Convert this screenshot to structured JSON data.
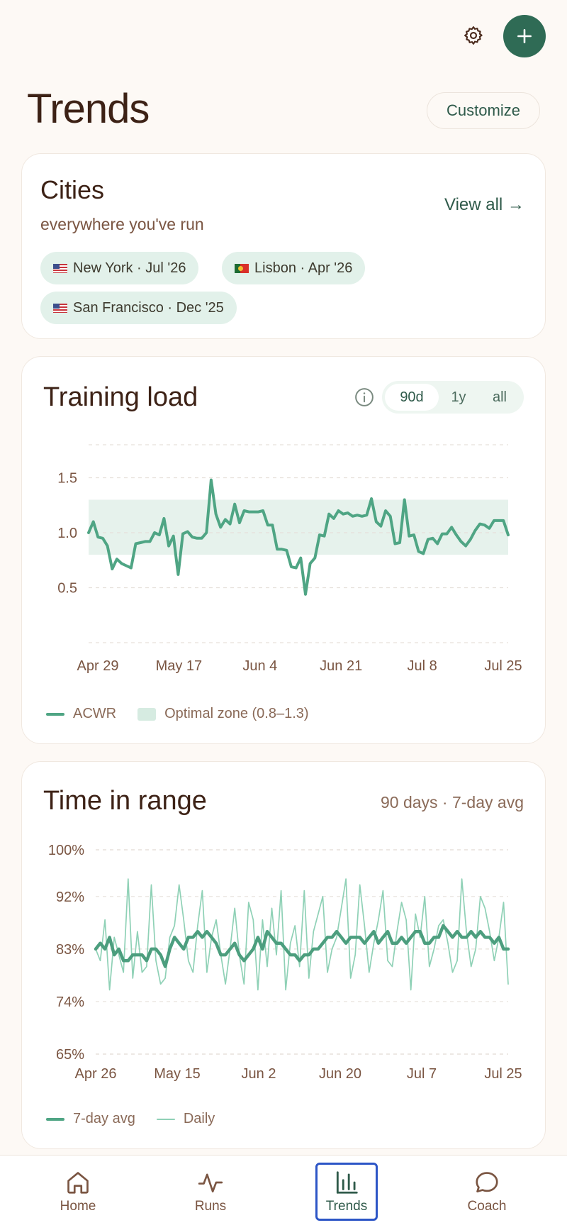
{
  "header": {
    "settings_icon": "gear-icon",
    "add_icon": "plus-icon",
    "title": "Trends",
    "customize_label": "Customize"
  },
  "cities": {
    "title": "Cities",
    "subtitle": "everywhere you've run",
    "view_all_label": "View all →",
    "chips": [
      {
        "flag": "US",
        "label": "New York · Jul '26"
      },
      {
        "flag": "PT",
        "label": "Lisbon · Apr '26"
      },
      {
        "flag": "US",
        "label": "San Francisco · Dec '25"
      }
    ]
  },
  "training_load": {
    "title": "Training load",
    "info_icon": "info-icon",
    "ranges": [
      "90d",
      "1y",
      "all"
    ],
    "selected_range": "90d",
    "legend": {
      "line": "ACWR",
      "zone": "Optimal zone (0.8–1.3)"
    }
  },
  "time_in_range": {
    "title": "Time in range",
    "meta": "90 days · 7-day avg",
    "legend": {
      "avg": "7-day avg",
      "daily": "Daily"
    }
  },
  "nav": {
    "items": [
      {
        "label": "Home",
        "icon": "home-icon"
      },
      {
        "label": "Runs",
        "icon": "pulse-icon"
      },
      {
        "label": "Trends",
        "icon": "bar-chart-icon"
      },
      {
        "label": "Coach",
        "icon": "chat-bubble-icon"
      }
    ],
    "active": "Trends"
  },
  "colors": {
    "accent": "#2f6b55",
    "line": "#4fa584",
    "zone": "#e6f2ec",
    "title": "#3d2216",
    "muted": "#8a6a58",
    "nav_focus": "#2c55c6"
  },
  "chart_data": [
    {
      "type": "line",
      "title": "Training load",
      "x_ticks": [
        "Apr 29",
        "May 17",
        "Jun 4",
        "Jun 21",
        "Jul 8",
        "Jul 25"
      ],
      "y_ticks": [
        "0.5",
        "1.0",
        "1.5"
      ],
      "ylim": [
        0.0,
        1.8
      ],
      "band": {
        "name": "Optimal zone (0.8–1.3)",
        "low": 0.8,
        "high": 1.3
      },
      "grid": true,
      "legend_position": "bottom-left",
      "series": [
        {
          "name": "ACWR",
          "values": [
            1.0,
            1.1,
            0.96,
            0.95,
            0.88,
            0.67,
            0.76,
            0.72,
            0.7,
            0.68,
            0.9,
            0.91,
            0.92,
            0.92,
            1.0,
            0.98,
            1.13,
            0.88,
            0.97,
            0.62,
            0.99,
            1.01,
            0.96,
            0.95,
            0.95,
            1.0,
            1.48,
            1.17,
            1.05,
            1.12,
            1.08,
            1.26,
            1.09,
            1.2,
            1.19,
            1.19,
            1.19,
            1.2,
            1.07,
            1.07,
            0.85,
            0.85,
            0.84,
            0.69,
            0.68,
            0.77,
            0.44,
            0.72,
            0.77,
            0.98,
            0.97,
            1.17,
            1.13,
            1.2,
            1.17,
            1.18,
            1.15,
            1.16,
            1.15,
            1.16,
            1.31,
            1.1,
            1.06,
            1.2,
            1.15,
            0.9,
            0.91,
            1.3,
            0.97,
            0.98,
            0.83,
            0.81,
            0.94,
            0.95,
            0.9,
            0.99,
            0.99,
            1.05,
            0.98,
            0.92,
            0.88,
            0.94,
            1.02,
            1.08,
            1.07,
            1.04,
            1.11,
            1.11,
            1.11,
            0.98
          ]
        }
      ]
    },
    {
      "type": "line",
      "title": "Time in range",
      "x_ticks": [
        "Apr 26",
        "May 15",
        "Jun 2",
        "Jun 20",
        "Jul 7",
        "Jul 25"
      ],
      "y_ticks": [
        "65%",
        "74%",
        "83%",
        "92%",
        "100%"
      ],
      "ylim": [
        65,
        100
      ],
      "grid": true,
      "legend_position": "bottom-left",
      "series": [
        {
          "name": "7-day avg",
          "values": [
            83,
            84,
            83,
            85,
            82,
            83,
            81,
            81,
            82,
            82,
            82,
            81,
            83,
            83,
            82,
            80,
            83,
            85,
            84,
            83,
            85,
            85,
            86,
            85,
            86,
            85,
            84,
            82,
            82,
            83,
            84,
            82,
            81,
            82,
            83,
            85,
            83,
            86,
            85,
            84,
            84,
            83,
            82,
            82,
            81,
            82,
            82,
            83,
            83,
            84,
            85,
            85,
            86,
            85,
            84,
            85,
            85,
            85,
            84,
            85,
            86,
            84,
            85,
            86,
            84,
            84,
            85,
            84,
            85,
            86,
            86,
            84,
            84,
            85,
            85,
            87,
            86,
            85,
            86,
            85,
            85,
            86,
            85,
            86,
            85,
            85,
            84,
            85,
            83,
            83
          ]
        },
        {
          "name": "Daily",
          "values": [
            83,
            81,
            88,
            76,
            85,
            82,
            79,
            95,
            78,
            86,
            79,
            80,
            94,
            81,
            77,
            78,
            85,
            87,
            94,
            88,
            81,
            79,
            87,
            93,
            79,
            85,
            88,
            82,
            77,
            83,
            90,
            82,
            77,
            91,
            88,
            76,
            88,
            80,
            90,
            82,
            93,
            76,
            84,
            87,
            80,
            93,
            78,
            86,
            89,
            92,
            79,
            83,
            85,
            90,
            95,
            78,
            82,
            94,
            87,
            79,
            84,
            88,
            93,
            81,
            80,
            86,
            91,
            88,
            76,
            89,
            85,
            92,
            80,
            83,
            87,
            88,
            84,
            79,
            81,
            95,
            86,
            80,
            83,
            92,
            90,
            86,
            81,
            85,
            91,
            77
          ]
        }
      ]
    }
  ]
}
